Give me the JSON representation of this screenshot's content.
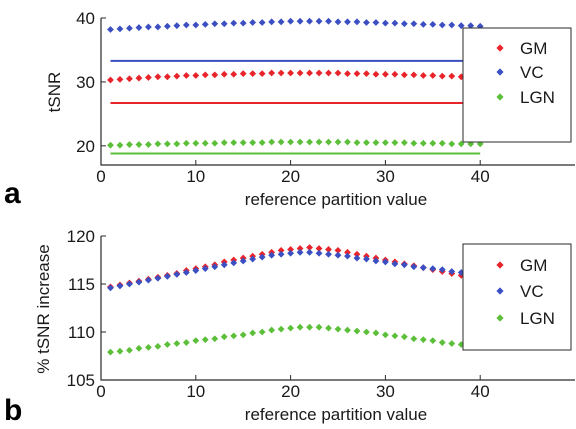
{
  "chart_data": [
    {
      "type": "scatter",
      "panel_label": "a",
      "xlabel": "reference partition value",
      "ylabel": "tSNR",
      "xlim": [
        0,
        50
      ],
      "ylim": [
        17,
        40
      ],
      "xticks": [
        "0",
        "10",
        "20",
        "30",
        "40"
      ],
      "yticks": [
        "20",
        "30",
        "40"
      ],
      "legend_position": "top-right",
      "x": [
        1,
        2,
        3,
        4,
        5,
        6,
        7,
        8,
        9,
        10,
        11,
        12,
        13,
        14,
        15,
        16,
        17,
        18,
        19,
        20,
        21,
        22,
        23,
        24,
        25,
        26,
        27,
        28,
        29,
        30,
        31,
        32,
        33,
        34,
        35,
        36,
        37,
        38,
        39,
        40
      ],
      "series": [
        {
          "name": "GM",
          "color": "#e8242a",
          "marker": "diamond",
          "values": [
            30.3,
            30.4,
            30.5,
            30.6,
            30.7,
            30.8,
            30.8,
            30.9,
            31.0,
            31.0,
            31.1,
            31.1,
            31.2,
            31.2,
            31.3,
            31.3,
            31.3,
            31.4,
            31.4,
            31.4,
            31.4,
            31.4,
            31.4,
            31.4,
            31.4,
            31.3,
            31.3,
            31.3,
            31.2,
            31.2,
            31.2,
            31.1,
            31.1,
            31.0,
            31.0,
            30.9,
            30.9,
            30.8,
            30.8,
            30.7
          ]
        },
        {
          "name": "VC",
          "color": "#3b4fc2",
          "marker": "diamond",
          "values": [
            38.2,
            38.3,
            38.4,
            38.5,
            38.6,
            38.6,
            38.7,
            38.8,
            38.9,
            38.9,
            39.0,
            39.1,
            39.1,
            39.2,
            39.2,
            39.3,
            39.3,
            39.4,
            39.4,
            39.5,
            39.5,
            39.5,
            39.5,
            39.5,
            39.4,
            39.4,
            39.4,
            39.3,
            39.3,
            39.2,
            39.2,
            39.1,
            39.1,
            39.0,
            39.0,
            38.9,
            38.9,
            38.8,
            38.8,
            38.7
          ]
        },
        {
          "name": "LGN",
          "color": "#5cbf3a",
          "marker": "diamond",
          "values": [
            20.1,
            20.1,
            20.2,
            20.2,
            20.2,
            20.3,
            20.3,
            20.3,
            20.4,
            20.4,
            20.4,
            20.4,
            20.5,
            20.5,
            20.5,
            20.5,
            20.5,
            20.6,
            20.6,
            20.6,
            20.6,
            20.6,
            20.6,
            20.6,
            20.6,
            20.6,
            20.5,
            20.5,
            20.5,
            20.5,
            20.5,
            20.5,
            20.4,
            20.4,
            20.4,
            20.4,
            20.3,
            20.3,
            20.3,
            20.3
          ]
        }
      ],
      "reference_lines": [
        {
          "series": "VC",
          "color": "#3b4fc2",
          "y": 33.3
        },
        {
          "series": "GM",
          "color": "#e8242a",
          "y": 26.7
        },
        {
          "series": "LGN",
          "color": "#5cbf3a",
          "y": 18.8
        }
      ]
    },
    {
      "type": "scatter",
      "panel_label": "b",
      "xlabel": "reference partition value",
      "ylabel": "% tSNR increase",
      "xlim": [
        0,
        50
      ],
      "ylim": [
        105,
        120
      ],
      "xticks": [
        "0",
        "10",
        "20",
        "30",
        "40"
      ],
      "yticks": [
        "105",
        "110",
        "115",
        "120"
      ],
      "legend_position": "right",
      "x": [
        1,
        2,
        3,
        4,
        5,
        6,
        7,
        8,
        9,
        10,
        11,
        12,
        13,
        14,
        15,
        16,
        17,
        18,
        19,
        20,
        21,
        22,
        23,
        24,
        25,
        26,
        27,
        28,
        29,
        30,
        31,
        32,
        33,
        34,
        35,
        36,
        37,
        38,
        39,
        40
      ],
      "series": [
        {
          "name": "GM",
          "color": "#e8242a",
          "marker": "diamond",
          "values": [
            114.7,
            114.9,
            115.1,
            115.3,
            115.5,
            115.7,
            115.9,
            116.1,
            116.4,
            116.6,
            116.8,
            117.0,
            117.3,
            117.5,
            117.7,
            117.9,
            118.1,
            118.3,
            118.5,
            118.6,
            118.7,
            118.8,
            118.7,
            118.6,
            118.5,
            118.3,
            118.1,
            117.9,
            117.7,
            117.5,
            117.3,
            117.1,
            116.9,
            116.7,
            116.5,
            116.3,
            116.1,
            115.9,
            115.8,
            115.7
          ]
        },
        {
          "name": "VC",
          "color": "#3b4fc2",
          "marker": "diamond",
          "values": [
            114.6,
            114.8,
            115.0,
            115.2,
            115.4,
            115.6,
            115.8,
            116.0,
            116.2,
            116.4,
            116.6,
            116.8,
            117.0,
            117.2,
            117.4,
            117.6,
            117.8,
            118.0,
            118.1,
            118.2,
            118.3,
            118.3,
            118.2,
            118.1,
            118.0,
            117.9,
            117.7,
            117.6,
            117.4,
            117.3,
            117.1,
            117.0,
            116.8,
            116.7,
            116.6,
            116.5,
            116.3,
            116.2,
            116.1,
            116.0
          ]
        },
        {
          "name": "LGN",
          "color": "#5cbf3a",
          "marker": "diamond",
          "values": [
            107.9,
            108.0,
            108.1,
            108.3,
            108.4,
            108.5,
            108.7,
            108.8,
            108.9,
            109.1,
            109.2,
            109.3,
            109.5,
            109.6,
            109.7,
            109.9,
            110.0,
            110.2,
            110.3,
            110.4,
            110.5,
            110.5,
            110.5,
            110.4,
            110.3,
            110.2,
            110.1,
            110.0,
            109.9,
            109.7,
            109.6,
            109.5,
            109.3,
            109.2,
            109.1,
            108.9,
            108.8,
            108.7,
            108.6,
            108.5
          ]
        }
      ]
    }
  ]
}
